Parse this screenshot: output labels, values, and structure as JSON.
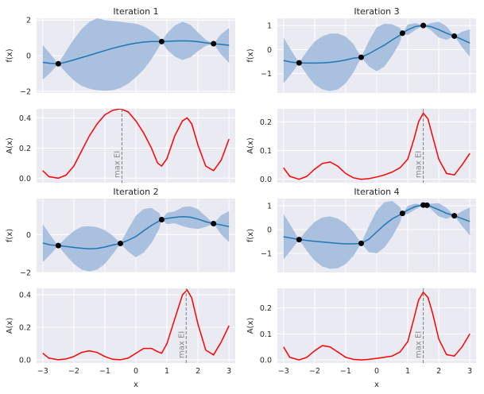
{
  "colors": {
    "panel_bg": "#eaeaf2",
    "grid": "#ffffff",
    "mean_line": "#1f77b4",
    "confidence_band": "#a9c0df",
    "acquisition_line": "#ff0000",
    "max_ei_marker": "#7f7f7f",
    "observation_marker": "#000000"
  },
  "chart_data": [
    {
      "type": "line",
      "row": 0,
      "col": 0,
      "kind": "gp",
      "title": "Iteration 1",
      "ylabel": "f(x)",
      "xlabel": "",
      "xlim": [
        -3.2,
        3.2
      ],
      "ylim": [
        -2.1,
        2.1
      ],
      "yticks": [
        -2,
        0,
        2
      ],
      "xticks": [
        -3,
        -2,
        -1,
        0,
        1,
        2,
        3
      ],
      "show_xtick_labels": false,
      "x": [
        -3,
        -2.75,
        -2.5,
        -2.25,
        -2,
        -1.75,
        -1.5,
        -1.25,
        -1,
        -0.75,
        -0.5,
        -0.25,
        0,
        0.25,
        0.5,
        0.75,
        0.83,
        1,
        1.25,
        1.5,
        1.75,
        2,
        2.25,
        2.5,
        2.75,
        3
      ],
      "mean": [
        -0.38,
        -0.44,
        -0.46,
        -0.36,
        -0.24,
        -0.11,
        0.02,
        0.15,
        0.28,
        0.41,
        0.52,
        0.62,
        0.7,
        0.76,
        0.79,
        0.79,
        0.79,
        0.8,
        0.82,
        0.83,
        0.82,
        0.78,
        0.72,
        0.67,
        0.63,
        0.58
      ],
      "lower": [
        -1.35,
        -0.95,
        -0.46,
        -0.96,
        -1.4,
        -1.7,
        -1.86,
        -1.95,
        -1.98,
        -1.95,
        -1.82,
        -1.58,
        -1.22,
        -0.78,
        -0.2,
        0.5,
        0.79,
        0.35,
        -0.05,
        -0.25,
        -0.1,
        0.25,
        0.55,
        0.67,
        0.05,
        -0.4
      ],
      "upper": [
        0.59,
        0.07,
        -0.46,
        0.24,
        0.92,
        1.48,
        1.9,
        2.1,
        2.0,
        1.95,
        1.9,
        1.85,
        1.8,
        1.65,
        1.4,
        1.05,
        0.79,
        1.25,
        1.69,
        1.91,
        1.74,
        1.31,
        0.89,
        0.67,
        1.21,
        1.56
      ],
      "observations": {
        "x": [
          -2.5,
          0.83,
          2.5
        ],
        "y": [
          -0.46,
          0.79,
          0.67
        ]
      }
    },
    {
      "type": "line",
      "row": 1,
      "col": 0,
      "kind": "acq",
      "title": "",
      "ylabel": "A(x)",
      "xlabel": "",
      "xlim": [
        -3.2,
        3.2
      ],
      "ylim": [
        -0.03,
        0.46
      ],
      "yticks": [
        0.0,
        0.2,
        0.4
      ],
      "xticks": [
        -3,
        -2,
        -1,
        0,
        1,
        2,
        3
      ],
      "show_xtick_labels": false,
      "x": [
        -3,
        -2.8,
        -2.5,
        -2.25,
        -2,
        -1.75,
        -1.5,
        -1.25,
        -1,
        -0.75,
        -0.5,
        -0.25,
        0,
        0.25,
        0.5,
        0.7,
        0.83,
        1,
        1.25,
        1.5,
        1.65,
        1.8,
        2,
        2.25,
        2.5,
        2.75,
        3
      ],
      "values": [
        0.05,
        0.01,
        0.0,
        0.02,
        0.08,
        0.18,
        0.28,
        0.36,
        0.42,
        0.45,
        0.46,
        0.44,
        0.38,
        0.3,
        0.2,
        0.1,
        0.08,
        0.13,
        0.28,
        0.38,
        0.4,
        0.36,
        0.22,
        0.08,
        0.05,
        0.12,
        0.26
      ],
      "max_ei": {
        "x": -0.45,
        "label": "max EI"
      }
    },
    {
      "type": "line",
      "row": 0,
      "col": 1,
      "kind": "gp",
      "title": "Iteration 3",
      "ylabel": "f(x)",
      "xlabel": "",
      "xlim": [
        -3.2,
        3.2
      ],
      "ylim": [
        -1.8,
        1.3
      ],
      "yticks": [
        -1,
        0,
        1
      ],
      "xticks": [
        -3,
        -2,
        -1,
        0,
        1,
        2,
        3
      ],
      "show_xtick_labels": false,
      "x": [
        -3,
        -2.75,
        -2.5,
        -2.25,
        -2,
        -1.75,
        -1.5,
        -1.25,
        -1,
        -0.75,
        -0.5,
        -0.25,
        0,
        0.25,
        0.5,
        0.75,
        0.83,
        1,
        1.25,
        1.5,
        1.75,
        2,
        2.25,
        2.5,
        2.75,
        3
      ],
      "mean": [
        -0.45,
        -0.52,
        -0.55,
        -0.56,
        -0.56,
        -0.55,
        -0.53,
        -0.49,
        -0.43,
        -0.36,
        -0.32,
        -0.17,
        0.01,
        0.19,
        0.4,
        0.6,
        0.68,
        0.82,
        0.96,
        1.0,
        0.95,
        0.83,
        0.68,
        0.56,
        0.42,
        0.27
      ],
      "lower": [
        -1.4,
        -1.0,
        -0.55,
        -1.05,
        -1.45,
        -1.65,
        -1.72,
        -1.65,
        -1.4,
        -0.95,
        -0.32,
        -0.7,
        -0.9,
        -0.7,
        -0.25,
        0.3,
        0.68,
        0.6,
        0.82,
        1.0,
        0.8,
        0.5,
        0.4,
        0.56,
        0.1,
        -0.3
      ],
      "upper": [
        0.5,
        -0.04,
        -0.55,
        -0.07,
        0.33,
        0.55,
        0.66,
        0.67,
        0.54,
        0.23,
        -0.32,
        0.36,
        0.92,
        1.08,
        1.05,
        0.9,
        0.68,
        1.04,
        1.1,
        1.0,
        1.1,
        1.16,
        0.96,
        0.56,
        0.74,
        0.84
      ],
      "observations": {
        "x": [
          -2.5,
          -0.5,
          0.83,
          1.5,
          2.5
        ],
        "y": [
          -0.55,
          -0.32,
          0.68,
          1.0,
          0.56
        ]
      }
    },
    {
      "type": "line",
      "row": 1,
      "col": 1,
      "kind": "acq",
      "title": "",
      "ylabel": "A(x)",
      "xlabel": "",
      "xlim": [
        -3.2,
        3.2
      ],
      "ylim": [
        -0.012,
        0.245
      ],
      "yticks": [
        0.0,
        0.1,
        0.2
      ],
      "xticks": [
        -3,
        -2,
        -1,
        0,
        1,
        2,
        3
      ],
      "show_xtick_labels": false,
      "x": [
        -3,
        -2.8,
        -2.5,
        -2.25,
        -2,
        -1.75,
        -1.5,
        -1.25,
        -1,
        -0.75,
        -0.5,
        -0.25,
        0,
        0.25,
        0.5,
        0.75,
        1,
        1.2,
        1.35,
        1.5,
        1.65,
        1.8,
        2,
        2.25,
        2.5,
        2.75,
        3
      ],
      "values": [
        0.04,
        0.01,
        0.0,
        0.01,
        0.035,
        0.055,
        0.06,
        0.045,
        0.02,
        0.005,
        0.0,
        0.002,
        0.008,
        0.015,
        0.025,
        0.04,
        0.07,
        0.14,
        0.2,
        0.23,
        0.21,
        0.15,
        0.07,
        0.02,
        0.015,
        0.05,
        0.09
      ],
      "max_ei": {
        "x": 1.5,
        "label": "max EI"
      }
    },
    {
      "type": "line",
      "row": 2,
      "col": 0,
      "kind": "gp",
      "title": "Iteration 2",
      "ylabel": "f(x)",
      "xlabel": "",
      "xlim": [
        -3.2,
        3.2
      ],
      "ylim": [
        -2.0,
        1.9
      ],
      "yticks": [
        -2,
        0
      ],
      "xticks": [
        -3,
        -2,
        -1,
        0,
        1,
        2,
        3
      ],
      "show_xtick_labels": false,
      "x": [
        -3,
        -2.75,
        -2.5,
        -2.25,
        -2,
        -1.75,
        -1.5,
        -1.25,
        -1,
        -0.75,
        -0.5,
        -0.25,
        0,
        0.25,
        0.5,
        0.75,
        0.83,
        1,
        1.25,
        1.5,
        1.75,
        2,
        2.25,
        2.5,
        2.75,
        3
      ],
      "mean": [
        -0.45,
        -0.55,
        -0.58,
        -0.63,
        -0.68,
        -0.72,
        -0.75,
        -0.73,
        -0.66,
        -0.55,
        -0.47,
        -0.3,
        -0.1,
        0.2,
        0.48,
        0.72,
        0.79,
        0.85,
        0.91,
        0.95,
        0.92,
        0.82,
        0.68,
        0.58,
        0.51,
        0.42
      ],
      "lower": [
        -1.45,
        -1.05,
        -0.58,
        -1.1,
        -1.55,
        -1.85,
        -1.95,
        -1.85,
        -1.55,
        -1.05,
        -0.47,
        -0.9,
        -1.2,
        -0.95,
        -0.45,
        0.3,
        0.79,
        0.55,
        0.6,
        0.45,
        0.35,
        0.3,
        0.4,
        0.58,
        0.0,
        -0.4
      ],
      "upper": [
        0.55,
        -0.05,
        -0.58,
        -0.16,
        0.19,
        0.41,
        0.45,
        0.39,
        0.23,
        -0.05,
        -0.47,
        0.3,
        1.0,
        1.35,
        1.41,
        1.14,
        0.79,
        1.15,
        1.22,
        1.45,
        1.49,
        1.34,
        0.96,
        0.58,
        1.02,
        1.24
      ],
      "observations": {
        "x": [
          -2.5,
          -0.5,
          0.83,
          2.5
        ],
        "y": [
          -0.58,
          -0.47,
          0.79,
          0.58
        ]
      }
    },
    {
      "type": "line",
      "row": 3,
      "col": 0,
      "kind": "acq",
      "title": "",
      "ylabel": "A(x)",
      "xlabel": "x",
      "xlim": [
        -3.2,
        3.2
      ],
      "ylim": [
        -0.02,
        0.44
      ],
      "yticks": [
        0.0,
        0.2,
        0.4
      ],
      "xticks": [
        -3,
        -2,
        -1,
        0,
        1,
        2,
        3
      ],
      "show_xtick_labels": true,
      "x": [
        -3,
        -2.8,
        -2.5,
        -2.25,
        -2,
        -1.75,
        -1.5,
        -1.25,
        -1,
        -0.75,
        -0.5,
        -0.25,
        0,
        0.25,
        0.5,
        0.7,
        0.83,
        1,
        1.25,
        1.5,
        1.65,
        1.8,
        2,
        2.25,
        2.5,
        2.75,
        3
      ],
      "values": [
        0.04,
        0.01,
        0.0,
        0.005,
        0.02,
        0.045,
        0.055,
        0.045,
        0.02,
        0.003,
        0.0,
        0.01,
        0.04,
        0.07,
        0.07,
        0.05,
        0.04,
        0.1,
        0.25,
        0.4,
        0.43,
        0.38,
        0.22,
        0.06,
        0.03,
        0.11,
        0.21
      ],
      "max_ei": {
        "x": 1.62,
        "label": "max EI"
      }
    },
    {
      "type": "line",
      "row": 2,
      "col": 1,
      "kind": "gp",
      "title": "Iteration 4",
      "ylabel": "f(x)",
      "xlabel": "",
      "xlim": [
        -3.2,
        3.2
      ],
      "ylim": [
        -1.8,
        1.3
      ],
      "yticks": [
        -1,
        0,
        1
      ],
      "xticks": [
        -3,
        -2,
        -1,
        0,
        1,
        2,
        3
      ],
      "show_xtick_labels": false,
      "x": [
        -3,
        -2.75,
        -2.5,
        -2.25,
        -2,
        -1.75,
        -1.5,
        -1.25,
        -1,
        -0.75,
        -0.5,
        -0.25,
        0,
        0.25,
        0.5,
        0.75,
        0.83,
        1,
        1.25,
        1.5,
        1.62,
        1.75,
        2,
        2.25,
        2.5,
        2.75,
        3
      ],
      "mean": [
        -0.3,
        -0.36,
        -0.42,
        -0.46,
        -0.49,
        -0.52,
        -0.55,
        -0.58,
        -0.6,
        -0.6,
        -0.58,
        -0.4,
        -0.1,
        0.2,
        0.45,
        0.62,
        0.68,
        0.82,
        0.97,
        1.03,
        1.02,
        0.97,
        0.83,
        0.68,
        0.58,
        0.46,
        0.34
      ],
      "lower": [
        -1.25,
        -0.85,
        -0.42,
        -0.9,
        -1.3,
        -1.55,
        -1.65,
        -1.62,
        -1.45,
        -1.1,
        -0.58,
        -0.95,
        -1.0,
        -0.75,
        -0.3,
        0.3,
        0.68,
        0.65,
        0.85,
        1.03,
        1.02,
        0.85,
        0.55,
        0.45,
        0.58,
        0.15,
        -0.25
      ],
      "upper": [
        0.65,
        0.13,
        -0.42,
        -0.02,
        0.32,
        0.51,
        0.55,
        0.46,
        0.25,
        -0.1,
        -0.58,
        0.15,
        0.8,
        1.15,
        1.2,
        0.94,
        0.68,
        0.99,
        1.09,
        1.03,
        1.02,
        1.09,
        1.11,
        0.91,
        0.58,
        0.77,
        0.93
      ],
      "observations": {
        "x": [
          -2.5,
          -0.5,
          0.83,
          1.5,
          1.62,
          2.5
        ],
        "y": [
          -0.42,
          -0.58,
          0.68,
          1.03,
          1.02,
          0.58
        ]
      }
    },
    {
      "type": "line",
      "row": 3,
      "col": 1,
      "kind": "acq",
      "title": "",
      "ylabel": "A(x)",
      "xlabel": "x",
      "xlim": [
        -3.2,
        3.2
      ],
      "ylim": [
        -0.012,
        0.275
      ],
      "yticks": [
        0.0,
        0.1,
        0.2
      ],
      "xticks": [
        -3,
        -2,
        -1,
        0,
        1,
        2,
        3
      ],
      "show_xtick_labels": true,
      "x": [
        -3,
        -2.8,
        -2.5,
        -2.25,
        -2,
        -1.75,
        -1.5,
        -1.25,
        -1,
        -0.75,
        -0.5,
        -0.25,
        0,
        0.25,
        0.5,
        0.75,
        1,
        1.2,
        1.35,
        1.5,
        1.65,
        1.8,
        2,
        2.25,
        2.5,
        2.75,
        3
      ],
      "values": [
        0.05,
        0.01,
        0.0,
        0.01,
        0.035,
        0.055,
        0.05,
        0.03,
        0.01,
        0.002,
        0.0,
        0.002,
        0.006,
        0.01,
        0.015,
        0.03,
        0.07,
        0.16,
        0.23,
        0.26,
        0.24,
        0.18,
        0.08,
        0.02,
        0.015,
        0.05,
        0.1
      ],
      "max_ei": {
        "x": 1.5,
        "label": "max EI"
      }
    }
  ]
}
